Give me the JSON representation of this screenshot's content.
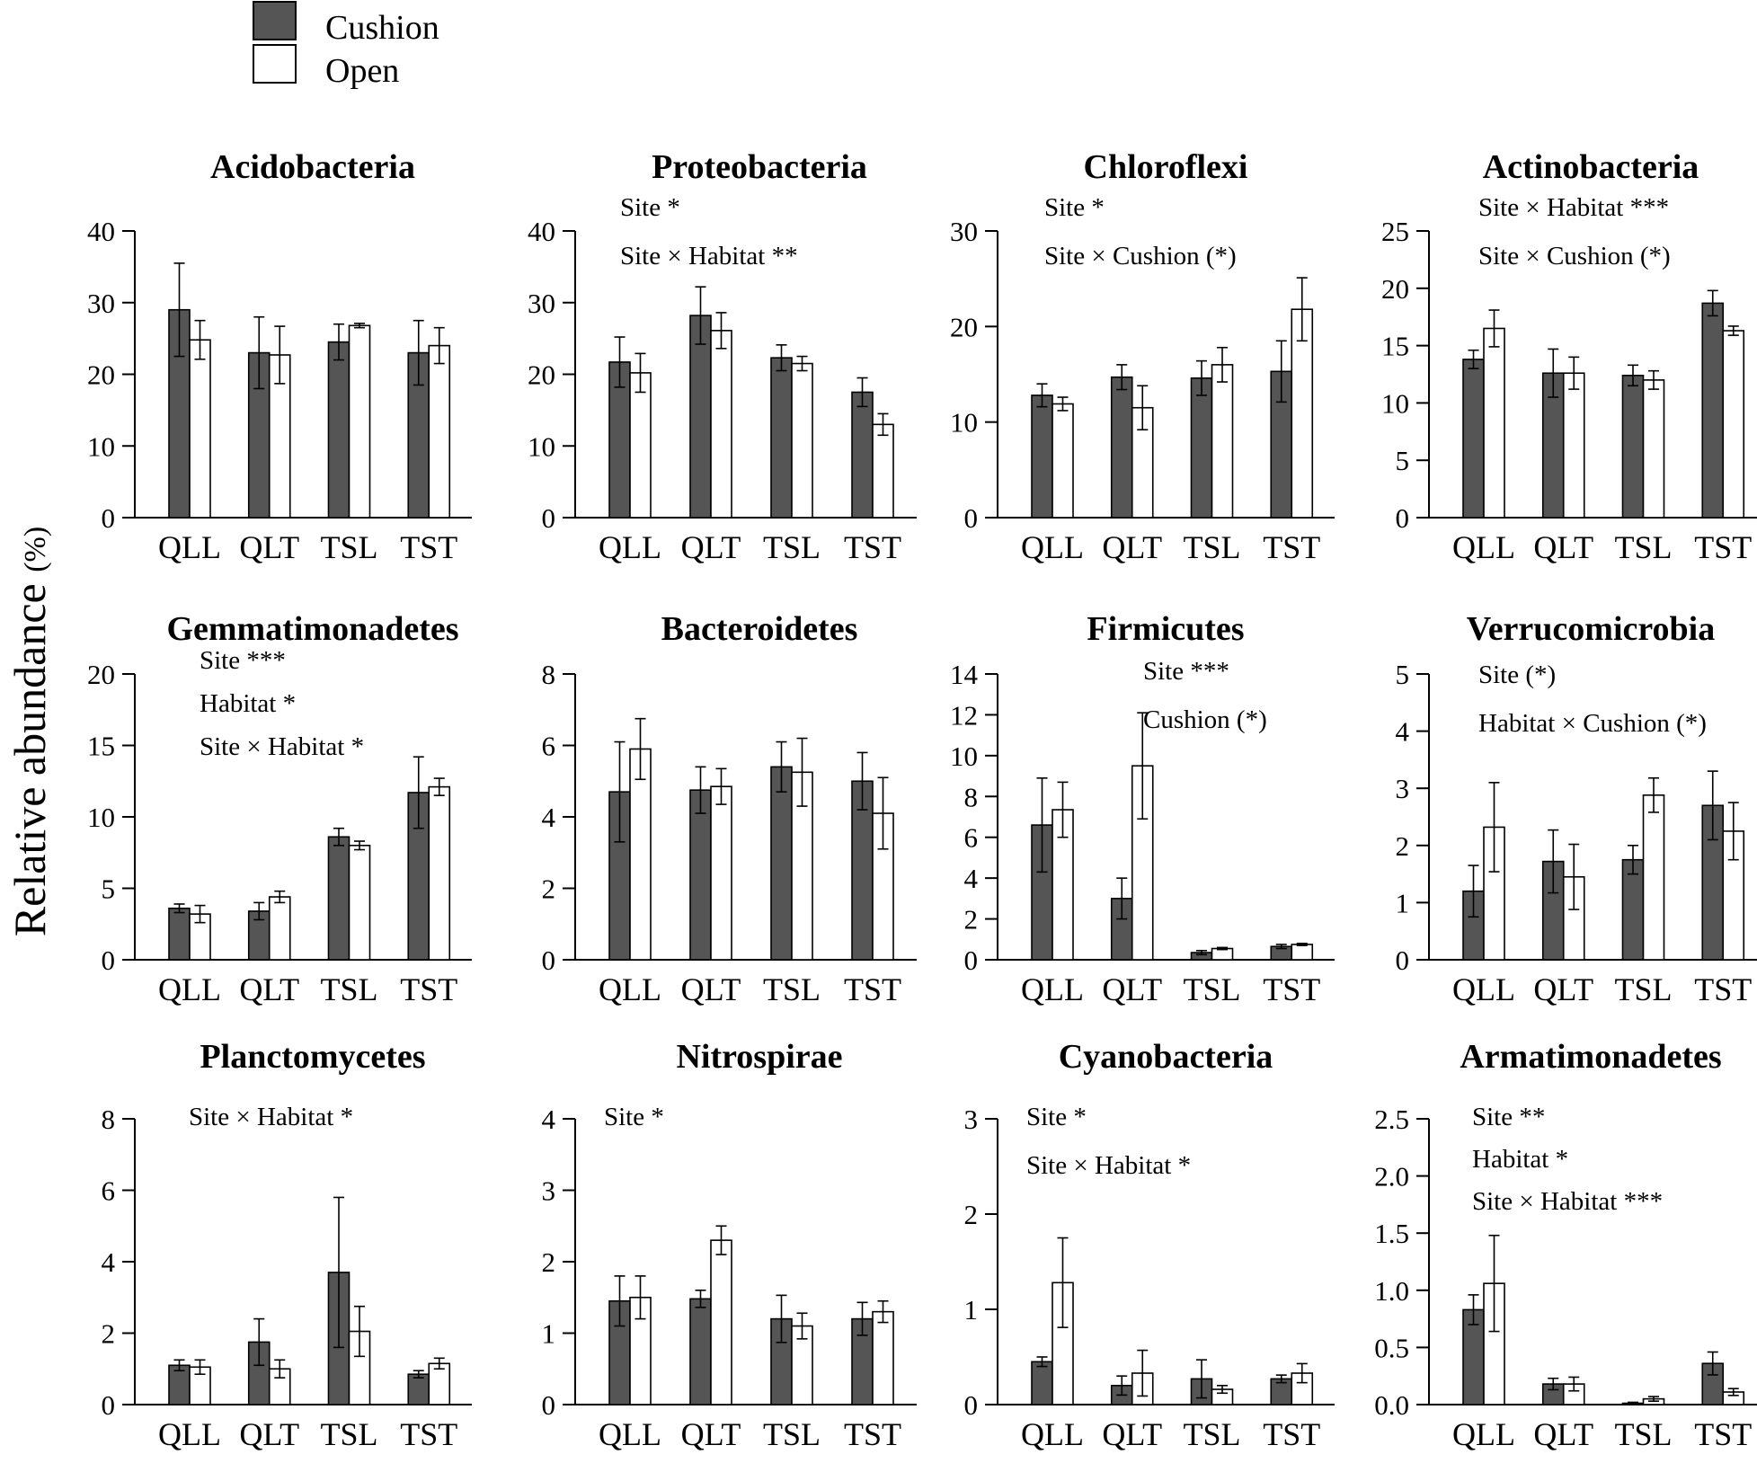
{
  "colors": {
    "cushion": "#555555",
    "open": "#ffffff",
    "stroke": "#000000"
  },
  "legend": {
    "cushion_label": "Cushion",
    "open_label": "Open"
  },
  "ylabel": "Relative abundance",
  "ylabel_unit": "(%)",
  "chart_data": [
    {
      "type": "bar",
      "title": "Acidobacteria",
      "annotations": [],
      "categories": [
        "QLL",
        "QLT",
        "TSL",
        "TST"
      ],
      "ylim": [
        0,
        40
      ],
      "yticks": [
        0,
        10,
        20,
        30,
        40
      ],
      "series": [
        {
          "name": "Cushion",
          "values": [
            29,
            23,
            24.5,
            23
          ],
          "errors": [
            6.5,
            5,
            2.5,
            4.5
          ]
        },
        {
          "name": "Open",
          "values": [
            24.8,
            22.7,
            26.8,
            24
          ],
          "errors": [
            2.7,
            4,
            0.3,
            2.5
          ]
        }
      ]
    },
    {
      "type": "bar",
      "title": "Proteobacteria",
      "annotations": [
        "Site *",
        "Site × Habitat **"
      ],
      "categories": [
        "QLL",
        "QLT",
        "TSL",
        "TST"
      ],
      "ylim": [
        0,
        40
      ],
      "yticks": [
        0,
        10,
        20,
        30,
        40
      ],
      "series": [
        {
          "name": "Cushion",
          "values": [
            21.7,
            28.2,
            22.3,
            17.5
          ],
          "errors": [
            3.5,
            4,
            1.8,
            2
          ]
        },
        {
          "name": "Open",
          "values": [
            20.2,
            26.1,
            21.5,
            13
          ],
          "errors": [
            2.7,
            2.5,
            1,
            1.5
          ]
        }
      ]
    },
    {
      "type": "bar",
      "title": "Chloroflexi",
      "annotations": [
        "Site *",
        "Site × Cushion (*)"
      ],
      "categories": [
        "QLL",
        "QLT",
        "TSL",
        "TST"
      ],
      "ylim": [
        0,
        30
      ],
      "yticks": [
        0,
        10,
        20,
        30
      ],
      "series": [
        {
          "name": "Cushion",
          "values": [
            12.8,
            14.7,
            14.6,
            15.3
          ],
          "errors": [
            1.2,
            1.3,
            1.8,
            3.2
          ]
        },
        {
          "name": "Open",
          "values": [
            11.9,
            11.5,
            16,
            21.8
          ],
          "errors": [
            0.7,
            2.3,
            1.8,
            3.3
          ]
        }
      ]
    },
    {
      "type": "bar",
      "title": "Actinobacteria",
      "annotations": [
        "Site × Habitat ***",
        "Site × Cushion (*)"
      ],
      "categories": [
        "QLL",
        "QLT",
        "TSL",
        "TST"
      ],
      "ylim": [
        0,
        25
      ],
      "yticks": [
        0,
        5,
        10,
        15,
        20,
        25
      ],
      "series": [
        {
          "name": "Cushion",
          "values": [
            13.8,
            12.6,
            12.4,
            18.7
          ],
          "errors": [
            0.8,
            2.1,
            0.9,
            1.1
          ]
        },
        {
          "name": "Open",
          "values": [
            16.5,
            12.6,
            12,
            16.3
          ],
          "errors": [
            1.6,
            1.4,
            0.8,
            0.4
          ]
        }
      ]
    },
    {
      "type": "bar",
      "title": "Gemmatimonadetes",
      "annotations": [
        "Site ***",
        "Habitat *",
        "Site × Habitat *"
      ],
      "categories": [
        "QLL",
        "QLT",
        "TSL",
        "TST"
      ],
      "ylim": [
        0,
        20
      ],
      "yticks": [
        0,
        5,
        10,
        15,
        20
      ],
      "series": [
        {
          "name": "Cushion",
          "values": [
            3.6,
            3.4,
            8.6,
            11.7
          ],
          "errors": [
            0.3,
            0.6,
            0.6,
            2.5
          ]
        },
        {
          "name": "Open",
          "values": [
            3.2,
            4.4,
            8,
            12.1
          ],
          "errors": [
            0.6,
            0.4,
            0.3,
            0.6
          ]
        }
      ]
    },
    {
      "type": "bar",
      "title": "Bacteroidetes",
      "annotations": [],
      "categories": [
        "QLL",
        "QLT",
        "TSL",
        "TST"
      ],
      "ylim": [
        0,
        8
      ],
      "yticks": [
        0,
        2,
        4,
        6,
        8
      ],
      "series": [
        {
          "name": "Cushion",
          "values": [
            4.7,
            4.75,
            5.4,
            5
          ],
          "errors": [
            1.4,
            0.65,
            0.7,
            0.8
          ]
        },
        {
          "name": "Open",
          "values": [
            5.9,
            4.85,
            5.25,
            4.1
          ],
          "errors": [
            0.85,
            0.5,
            0.95,
            1
          ]
        }
      ]
    },
    {
      "type": "bar",
      "title": "Firmicutes",
      "annotations": [
        "Site ***",
        "Cushion (*)"
      ],
      "categories": [
        "QLL",
        "QLT",
        "TSL",
        "TST"
      ],
      "ylim": [
        0,
        14
      ],
      "yticks": [
        0,
        2,
        4,
        6,
        8,
        10,
        12,
        14
      ],
      "series": [
        {
          "name": "Cushion",
          "values": [
            6.6,
            3,
            0.35,
            0.65
          ],
          "errors": [
            2.3,
            1,
            0.1,
            0.1
          ]
        },
        {
          "name": "Open",
          "values": [
            7.35,
            9.5,
            0.55,
            0.75
          ],
          "errors": [
            1.35,
            2.6,
            0.05,
            0.05
          ]
        }
      ]
    },
    {
      "type": "bar",
      "title": "Verrucomicrobia",
      "annotations": [
        "Site (*)",
        "Habitat × Cushion (*)"
      ],
      "categories": [
        "QLL",
        "QLT",
        "TSL",
        "TST"
      ],
      "ylim": [
        0,
        5
      ],
      "yticks": [
        0,
        1,
        2,
        3,
        4,
        5
      ],
      "series": [
        {
          "name": "Cushion",
          "values": [
            1.2,
            1.72,
            1.75,
            2.7
          ],
          "errors": [
            0.45,
            0.55,
            0.25,
            0.6
          ]
        },
        {
          "name": "Open",
          "values": [
            2.32,
            1.45,
            2.88,
            2.25
          ],
          "errors": [
            0.78,
            0.57,
            0.3,
            0.5
          ]
        }
      ]
    },
    {
      "type": "bar",
      "title": "Planctomycetes",
      "annotations": [
        "Site × Habitat *"
      ],
      "categories": [
        "QLL",
        "QLT",
        "TSL",
        "TST"
      ],
      "ylim": [
        0,
        8
      ],
      "yticks": [
        0,
        2,
        4,
        6,
        8
      ],
      "series": [
        {
          "name": "Cushion",
          "values": [
            1.1,
            1.75,
            3.7,
            0.85
          ],
          "errors": [
            0.15,
            0.65,
            2.1,
            0.1
          ]
        },
        {
          "name": "Open",
          "values": [
            1.05,
            1,
            2.05,
            1.15
          ],
          "errors": [
            0.2,
            0.25,
            0.7,
            0.15
          ]
        }
      ]
    },
    {
      "type": "bar",
      "title": "Nitrospirae",
      "annotations": [
        "Site *"
      ],
      "categories": [
        "QLL",
        "QLT",
        "TSL",
        "TST"
      ],
      "ylim": [
        0,
        4
      ],
      "yticks": [
        0,
        1,
        2,
        3,
        4
      ],
      "series": [
        {
          "name": "Cushion",
          "values": [
            1.45,
            1.48,
            1.2,
            1.2
          ],
          "errors": [
            0.35,
            0.12,
            0.33,
            0.23
          ]
        },
        {
          "name": "Open",
          "values": [
            1.5,
            2.3,
            1.1,
            1.3
          ],
          "errors": [
            0.3,
            0.2,
            0.18,
            0.15
          ]
        }
      ]
    },
    {
      "type": "bar",
      "title": "Cyanobacteria",
      "annotations": [
        "Site *",
        "Site × Habitat *"
      ],
      "categories": [
        "QLL",
        "QLT",
        "TSL",
        "TST"
      ],
      "ylim": [
        0,
        3
      ],
      "yticks": [
        0,
        1,
        2,
        3
      ],
      "series": [
        {
          "name": "Cushion",
          "values": [
            0.45,
            0.2,
            0.27,
            0.27
          ],
          "errors": [
            0.05,
            0.1,
            0.2,
            0.04
          ]
        },
        {
          "name": "Open",
          "values": [
            1.28,
            0.33,
            0.16,
            0.33
          ],
          "errors": [
            0.47,
            0.24,
            0.04,
            0.1
          ]
        }
      ]
    },
    {
      "type": "bar",
      "title": "Armatimonadetes",
      "annotations": [
        "Site **",
        "Habitat *",
        "Site × Habitat ***"
      ],
      "categories": [
        "QLL",
        "QLT",
        "TSL",
        "TST"
      ],
      "ylim": [
        0,
        2.5
      ],
      "yticks": [
        0.0,
        0.5,
        1.0,
        1.5,
        2.0,
        2.5
      ],
      "ytick_labels": [
        "0.0",
        "0.5",
        "1.0",
        "1.5",
        "2.0",
        "2.5"
      ],
      "series": [
        {
          "name": "Cushion",
          "values": [
            0.83,
            0.18,
            0.01,
            0.36
          ],
          "errors": [
            0.13,
            0.05,
            0.01,
            0.1
          ]
        },
        {
          "name": "Open",
          "values": [
            1.06,
            0.18,
            0.05,
            0.11
          ],
          "errors": [
            0.42,
            0.06,
            0.02,
            0.03
          ]
        }
      ]
    }
  ]
}
